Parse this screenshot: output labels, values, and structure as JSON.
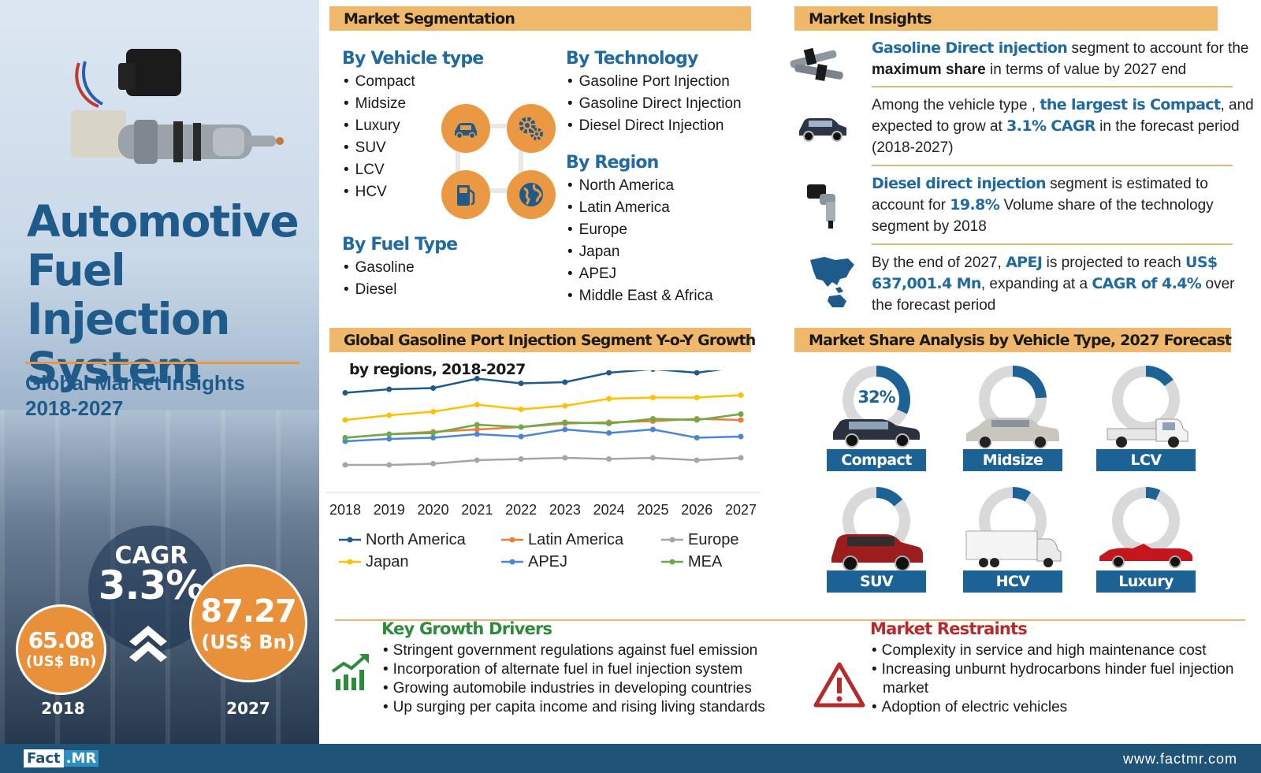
{
  "hero": {
    "title_lines": [
      "Automotive",
      "Fuel Injection",
      "System"
    ],
    "subtitle_lines": [
      "Global Market Insights",
      "2018-2027"
    ],
    "cagr_label": "CAGR",
    "cagr_value": "3.3%",
    "value_2018": "65.08",
    "value_2027": "87.27",
    "unit": "(US$ Bn)",
    "year_start": "2018",
    "year_end": "2027"
  },
  "segmentation": {
    "header": "Market Segmentation",
    "vehicle_type": {
      "title": "By Vehicle type",
      "items": [
        "Compact",
        "Midsize",
        "Luxury",
        "SUV",
        "LCV",
        "HCV"
      ]
    },
    "fuel_type": {
      "title": "By Fuel Type",
      "items": [
        "Gasoline",
        "Diesel"
      ]
    },
    "technology": {
      "title": "By Technology",
      "items": [
        "Gasoline Port Injection",
        "Gasoline Direct Injection",
        "Diesel Direct Injection"
      ]
    },
    "region": {
      "title": "By Region",
      "items": [
        "North America",
        "Latin America",
        "Europe",
        "Japan",
        "APEJ",
        "Middle East & Africa"
      ]
    },
    "icons": [
      "car-icon",
      "gears-icon",
      "fuel-pump-icon",
      "globe-icon"
    ]
  },
  "insights": {
    "header": "Market Insights",
    "items": [
      {
        "icon": "injector-pair-icon",
        "parts": [
          {
            "t": "Gasoline Direct injection",
            "s": "h"
          },
          {
            "t": " segment to account for the ",
            "s": ""
          },
          {
            "t": "maximum share",
            "s": "k"
          },
          {
            "t": " in terms of value by 2027 end",
            "s": ""
          }
        ]
      },
      {
        "icon": "suv-icon",
        "parts": [
          {
            "t": "Among the vehicle type , ",
            "s": ""
          },
          {
            "t": "the largest is Compact",
            "s": "h"
          },
          {
            "t": ", and expected to grow at ",
            "s": ""
          },
          {
            "t": "3.1% CAGR",
            "s": "h"
          },
          {
            "t": " in the forecast period (2018-2027)",
            "s": ""
          }
        ]
      },
      {
        "icon": "diesel-injector-icon",
        "parts": [
          {
            "t": "Diesel direct injection",
            "s": "h"
          },
          {
            "t": " segment is estimated to account for ",
            "s": ""
          },
          {
            "t": "19.8%",
            "s": "h"
          },
          {
            "t": " Volume share of the technology segment by 2018",
            "s": ""
          }
        ]
      },
      {
        "icon": "asia-map-icon",
        "parts": [
          {
            "t": "By the end of 2027, ",
            "s": ""
          },
          {
            "t": "APEJ",
            "s": "h"
          },
          {
            "t": " is projected to reach ",
            "s": ""
          },
          {
            "t": "US$ 637,001.4 Mn",
            "s": "h"
          },
          {
            "t": ", expanding at a ",
            "s": ""
          },
          {
            "t": "CAGR of 4.4%",
            "s": "h"
          },
          {
            "t": " over the forecast period",
            "s": ""
          }
        ]
      }
    ]
  },
  "growth_chart": {
    "header": "Global Gasoline Port Injection Segment Y-o-Y Growth",
    "subheader": "by regions, 2018-2027"
  },
  "share_chart": {
    "header": "Market Share Analysis by Vehicle Type, 2027 Forecast",
    "vehicles": [
      {
        "label": "Compact",
        "share": 32,
        "pct_label": "32%",
        "icon": "compact-car-icon"
      },
      {
        "label": "Midsize",
        "share": 24,
        "pct_label": "",
        "icon": "midsize-car-icon"
      },
      {
        "label": "LCV",
        "share": 15,
        "pct_label": "",
        "icon": "pickup-truck-icon"
      },
      {
        "label": "SUV",
        "share": 14,
        "pct_label": "",
        "icon": "suv-car-icon"
      },
      {
        "label": "HCV",
        "share": 9,
        "pct_label": "",
        "icon": "box-truck-icon"
      },
      {
        "label": "Luxury",
        "share": 7,
        "pct_label": "",
        "icon": "convertible-car-icon"
      }
    ]
  },
  "drivers": {
    "title": "Key Growth Drivers",
    "items": [
      "Stringent government regulations against fuel emission",
      "Incorporation of alternate fuel in fuel injection system",
      "Growing automobile industries in developing countries",
      "Up surging per capita income and rising living standards"
    ]
  },
  "restraints": {
    "title": "Market Restraints",
    "items": [
      "Complexity in service and high maintenance cost",
      "Increasing unburnt hydrocarbons hinder fuel injection market",
      "Adoption of electric vehicles"
    ]
  },
  "footer": {
    "logo_a": "Fact",
    "logo_b": ".MR",
    "website": "www.factmr.com"
  },
  "colors": {
    "accent_orange": "#e8913a",
    "header_bar": "#f0b86a",
    "brand_blue": "#1f5b8a",
    "highlight_blue": "#1f6aa0",
    "restraint_red": "#b52a2a",
    "driver_green": "#2e8b3a"
  },
  "chart_data": [
    {
      "type": "line",
      "title": "Global Gasoline Port Injection Segment Y-o-Y Growth",
      "subtitle": "by regions, 2018-2027",
      "x": [
        "2018",
        "2019",
        "2020",
        "2021",
        "2022",
        "2023",
        "2024",
        "2025",
        "2026",
        "2027"
      ],
      "ylim": [
        0,
        100
      ],
      "grid": false,
      "legend": "bottom",
      "series": [
        {
          "name": "North America",
          "color": "#1f5b8a",
          "values": [
            81,
            84,
            85,
            93,
            89,
            90,
            98,
            101,
            98,
            103
          ]
        },
        {
          "name": "Latin America",
          "color": "#ee7d31",
          "values": [
            43,
            46,
            48,
            50,
            52,
            55,
            56,
            57,
            59,
            58
          ]
        },
        {
          "name": "Europe",
          "color": "#a5a5a5",
          "values": [
            20,
            20,
            21,
            24,
            25,
            26,
            25,
            26,
            24,
            26
          ]
        },
        {
          "name": "Japan",
          "color": "#ffc000",
          "values": [
            58,
            62,
            65,
            71,
            67,
            70,
            76,
            77,
            77,
            79
          ]
        },
        {
          "name": "APEJ",
          "color": "#4a86d8",
          "values": [
            40,
            42,
            43,
            46,
            44,
            50,
            47,
            50,
            43,
            44
          ]
        },
        {
          "name": "MEA",
          "color": "#6aaa4a",
          "values": [
            43,
            46,
            47,
            54,
            52,
            56,
            55,
            59,
            58,
            63
          ]
        }
      ]
    },
    {
      "type": "pie",
      "title": "Market Share Analysis by Vehicle Type, 2027 Forecast",
      "categories": [
        "Compact",
        "Midsize",
        "LCV",
        "SUV",
        "HCV",
        "Luxury"
      ],
      "values": [
        32,
        24,
        15,
        14,
        9,
        7
      ]
    }
  ]
}
